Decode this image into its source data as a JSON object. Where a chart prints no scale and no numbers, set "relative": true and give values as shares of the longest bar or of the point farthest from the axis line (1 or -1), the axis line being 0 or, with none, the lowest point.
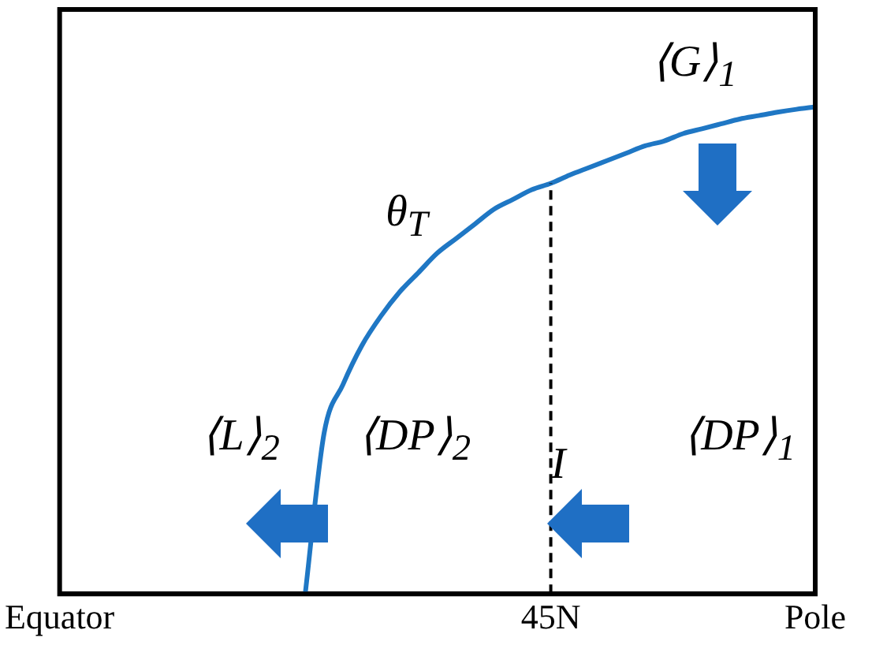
{
  "chart_data": {
    "type": "line",
    "relative": true,
    "categories": [
      "Equator",
      null,
      null,
      null,
      null,
      null,
      null,
      null,
      null,
      null,
      null,
      null,
      null,
      null,
      null,
      null,
      null,
      null,
      null,
      null,
      null,
      null,
      null,
      null,
      null,
      null,
      "45N",
      null,
      null,
      null,
      null,
      null,
      null,
      null,
      null,
      null,
      null,
      null,
      null,
      null,
      "Pole"
    ],
    "series": [
      {
        "name": "θ$_{T}$",
        "color": "#1f77c4",
        "values": [
          null,
          null,
          null,
          null,
          null,
          null,
          null,
          null,
          null,
          null,
          null,
          null,
          null,
          0,
          0.33,
          0.43,
          0.51,
          0.57,
          0.62,
          0.66,
          0.7,
          0.73,
          0.76,
          0.79,
          0.81,
          0.83,
          0.843,
          0.86,
          0.875,
          0.89,
          0.905,
          0.92,
          0.93,
          0.945,
          0.955,
          0.965,
          0.975,
          0.982,
          0.989,
          0.995,
          1
        ]
      }
    ],
    "ref_lines": [
      {
        "axis": "x",
        "value": "45N",
        "color": "#000000",
        "line_style": "dashed"
      }
    ],
    "annotations": [
      "⟨G⟩$_{1}$",
      "⟨L⟩$_{2}$",
      "⟨DP⟩$_{2}$",
      "I",
      "⟨DP⟩$_{1}$"
    ],
    "grid": false,
    "legend": false,
    "marker": "none",
    "line_style": "solid"
  }
}
